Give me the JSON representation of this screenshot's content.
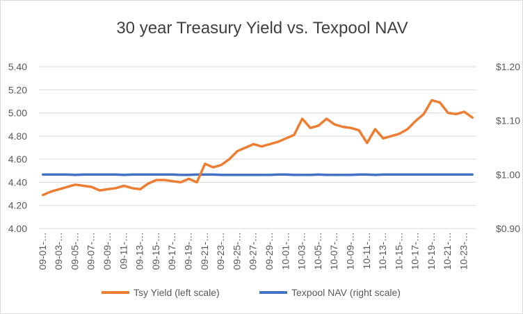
{
  "chart_data": {
    "type": "line",
    "title": "30 year Treasury Yield vs. Texpool NAV",
    "left_axis": {
      "ylim": [
        4.0,
        5.4
      ],
      "ticks": [
        "4.00",
        "4.20",
        "4.40",
        "4.60",
        "4.80",
        "5.00",
        "5.20",
        "5.40"
      ]
    },
    "right_axis": {
      "ylim": [
        0.9,
        1.2
      ],
      "ticks": [
        "$0.90",
        "$1.00",
        "$1.10",
        "$1.20"
      ]
    },
    "grid": true,
    "legend_position": "bottom",
    "x_tick_labels": [
      "09-01-…",
      "09-03-…",
      "09-05-…",
      "09-07-…",
      "09-09-…",
      "09-11-…",
      "09-13-…",
      "09-15-…",
      "09-17-…",
      "09-19-…",
      "09-21-…",
      "09-23-…",
      "09-25-…",
      "09-27-…",
      "09-29-…",
      "10-01-…",
      "10-03-…",
      "10-05-…",
      "10-07-…",
      "10-09-…",
      "10-11-…",
      "10-13-…",
      "10-15-…",
      "10-17-…",
      "10-19-…",
      "10-21-…",
      "10-23-…"
    ],
    "series": [
      {
        "name": "Tsy Yield (left scale)",
        "axis": "left",
        "color": "#ED7D31",
        "values": [
          4.29,
          4.32,
          4.34,
          4.36,
          4.38,
          4.37,
          4.36,
          4.33,
          4.34,
          4.35,
          4.37,
          4.35,
          4.34,
          4.39,
          4.42,
          4.42,
          4.41,
          4.4,
          4.43,
          4.4,
          4.56,
          4.53,
          4.55,
          4.6,
          4.67,
          4.7,
          4.73,
          4.71,
          4.73,
          4.75,
          4.78,
          4.81,
          4.95,
          4.87,
          4.89,
          4.95,
          4.9,
          4.88,
          4.87,
          4.85,
          4.74,
          4.86,
          4.78,
          4.8,
          4.82,
          4.86,
          4.93,
          4.99,
          5.11,
          5.09,
          5.0,
          4.99,
          5.01,
          4.96
        ]
      },
      {
        "name": "Texpool NAV (right scale)",
        "axis": "right",
        "color": "#4472C4",
        "values": [
          1.0,
          1.0,
          1.0,
          1.0,
          0.9995,
          1.0,
          1.0,
          1.0,
          1.0,
          1.0,
          0.9995,
          1.0,
          1.0,
          1.0,
          1.0,
          1.0,
          1.0,
          0.9995,
          0.9995,
          1.0,
          1.0,
          1.0,
          0.9995,
          0.9995,
          0.9995,
          0.9995,
          0.9995,
          0.9995,
          0.9995,
          1.0,
          1.0,
          0.9995,
          0.9995,
          0.9995,
          1.0,
          0.9995,
          0.9995,
          0.9995,
          0.9995,
          1.0,
          1.0,
          0.9995,
          1.0,
          1.0,
          1.0,
          1.0,
          1.0,
          1.0,
          1.0,
          1.0,
          1.0,
          1.0,
          1.0,
          1.0
        ]
      }
    ]
  }
}
